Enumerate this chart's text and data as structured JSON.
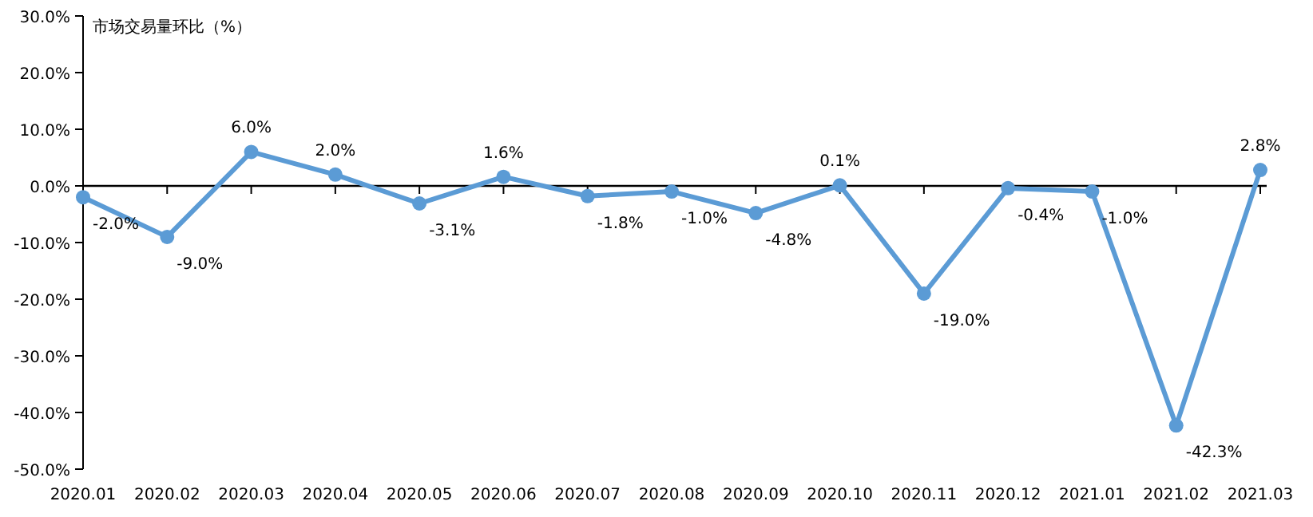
{
  "chart_data": {
    "type": "line",
    "ylabel": "市场交易量环比（%）",
    "categories": [
      "2020.01",
      "2020.02",
      "2020.03",
      "2020.04",
      "2020.05",
      "2020.06",
      "2020.07",
      "2020.08",
      "2020.09",
      "2020.10",
      "2020.11",
      "2020.12",
      "2021.01",
      "2021.02",
      "2021.03"
    ],
    "series": [
      {
        "color": "#5b9bd5",
        "values": [
          -2.0,
          -9.0,
          6.0,
          2.0,
          -3.1,
          1.6,
          -1.8,
          -1.0,
          -4.8,
          0.1,
          -19.0,
          -0.4,
          -1.0,
          -42.3,
          2.8
        ],
        "value_labels": [
          "-2.0%",
          "-9.0%",
          "6.0%",
          "2.0%",
          "-3.1%",
          "1.6%",
          "-1.8%",
          "-1.0%",
          "-4.8%",
          "0.1%",
          "-19.0%",
          "-0.4%",
          "-1.0%",
          "-42.3%",
          "2.8%"
        ]
      }
    ],
    "ylim": [
      -50,
      30
    ],
    "yticks": [
      {
        "value": 30,
        "label": "30.0%"
      },
      {
        "value": 20,
        "label": "20.0%"
      },
      {
        "value": 10,
        "label": "10.0%"
      },
      {
        "value": 0,
        "label": "0.0%"
      },
      {
        "value": -10,
        "label": "-10.0%"
      },
      {
        "value": -20,
        "label": "-20.0%"
      },
      {
        "value": -30,
        "label": "-30.0%"
      },
      {
        "value": -40,
        "label": "-40.0%"
      },
      {
        "value": -50,
        "label": "-50.0%"
      }
    ],
    "marker": "circle",
    "line_style": "solid"
  }
}
